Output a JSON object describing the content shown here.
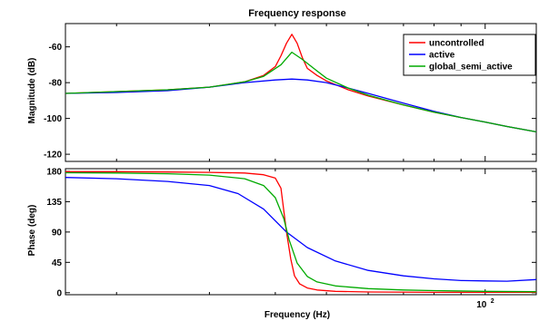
{
  "chart_data": [
    {
      "type": "line",
      "title": "Frequency response",
      "ylabel": "Magnitude (dB)",
      "xscale": "log",
      "xlim": [
        16,
        125
      ],
      "ylim": [
        -124,
        -47
      ],
      "yticks": [
        -60,
        -80,
        -100,
        -120
      ],
      "grid": false,
      "legend_position": "top-right",
      "series": [
        {
          "name": "uncontrolled",
          "color": "#ff0000",
          "points": [
            [
              16,
              -86
            ],
            [
              20,
              -85
            ],
            [
              25,
              -84
            ],
            [
              30,
              -82.5
            ],
            [
              35,
              -79.5
            ],
            [
              38,
              -76
            ],
            [
              40,
              -71
            ],
            [
              41,
              -65
            ],
            [
              42,
              -58
            ],
            [
              43,
              -53
            ],
            [
              44,
              -58
            ],
            [
              45,
              -66
            ],
            [
              46,
              -72
            ],
            [
              48,
              -76
            ],
            [
              50,
              -79
            ],
            [
              55,
              -84
            ],
            [
              60,
              -87.5
            ],
            [
              70,
              -92.5
            ],
            [
              80,
              -96.5
            ],
            [
              90,
              -99.5
            ],
            [
              100,
              -102
            ],
            [
              110,
              -104.5
            ],
            [
              125,
              -107.5
            ]
          ]
        },
        {
          "name": "active",
          "color": "#0000ff",
          "points": [
            [
              16,
              -86
            ],
            [
              20,
              -85.5
            ],
            [
              25,
              -84.5
            ],
            [
              30,
              -82.5
            ],
            [
              35,
              -80
            ],
            [
              40,
              -78.5
            ],
            [
              43,
              -78
            ],
            [
              46,
              -78.5
            ],
            [
              50,
              -80
            ],
            [
              55,
              -83
            ],
            [
              60,
              -86
            ],
            [
              70,
              -91.5
            ],
            [
              80,
              -96
            ],
            [
              90,
              -99.5
            ],
            [
              100,
              -102
            ],
            [
              110,
              -104.5
            ],
            [
              125,
              -107.5
            ]
          ]
        },
        {
          "name": "global_semi_active",
          "color": "#00aa00",
          "points": [
            [
              16,
              -86
            ],
            [
              20,
              -85
            ],
            [
              25,
              -84
            ],
            [
              30,
              -82.5
            ],
            [
              35,
              -79.5
            ],
            [
              38,
              -76.5
            ],
            [
              41,
              -70
            ],
            [
              43,
              -63
            ],
            [
              45,
              -67
            ],
            [
              48,
              -73.5
            ],
            [
              50,
              -77.5
            ],
            [
              55,
              -83
            ],
            [
              60,
              -87
            ],
            [
              70,
              -92.5
            ],
            [
              80,
              -96.5
            ],
            [
              90,
              -99.5
            ],
            [
              100,
              -102
            ],
            [
              110,
              -104.5
            ],
            [
              125,
              -107.5
            ]
          ]
        }
      ]
    },
    {
      "type": "line",
      "xlabel": "Frequency  (Hz)",
      "ylabel": "Phase (deg)",
      "xscale": "log",
      "xlim": [
        16,
        125
      ],
      "ylim": [
        -3,
        184
      ],
      "yticks": [
        0,
        45,
        90,
        135,
        180
      ],
      "xtick_labels": [
        "10^2"
      ],
      "grid": false,
      "series": [
        {
          "name": "uncontrolled",
          "color": "#ff0000",
          "points": [
            [
              16,
              179.5
            ],
            [
              20,
              179.5
            ],
            [
              25,
              179
            ],
            [
              30,
              178.5
            ],
            [
              35,
              177.5
            ],
            [
              38,
              175
            ],
            [
              40,
              170
            ],
            [
              41,
              155
            ],
            [
              42,
              90
            ],
            [
              42.8,
              50
            ],
            [
              43.5,
              25
            ],
            [
              44.5,
              13
            ],
            [
              46,
              7
            ],
            [
              48,
              4
            ],
            [
              52,
              2
            ],
            [
              60,
              1
            ],
            [
              80,
              0.5
            ],
            [
              100,
              0.5
            ],
            [
              125,
              0.5
            ]
          ]
        },
        {
          "name": "active",
          "color": "#0000ff",
          "points": [
            [
              16,
              171
            ],
            [
              20,
              169
            ],
            [
              25,
              165
            ],
            [
              30,
              159
            ],
            [
              34,
              147
            ],
            [
              38,
              124
            ],
            [
              42,
              90
            ],
            [
              46,
              67
            ],
            [
              52,
              47
            ],
            [
              60,
              33
            ],
            [
              70,
              25
            ],
            [
              80,
              20.5
            ],
            [
              90,
              18
            ],
            [
              100,
              17.5
            ],
            [
              110,
              17
            ],
            [
              125,
              19.5
            ]
          ]
        },
        {
          "name": "global_semi_active",
          "color": "#00aa00",
          "points": [
            [
              16,
              178
            ],
            [
              20,
              177.5
            ],
            [
              25,
              176.5
            ],
            [
              30,
              174.5
            ],
            [
              35,
              169
            ],
            [
              38,
              159
            ],
            [
              40,
              141
            ],
            [
              41.5,
              110
            ],
            [
              42.5,
              78
            ],
            [
              44,
              44
            ],
            [
              46,
              24
            ],
            [
              48,
              16
            ],
            [
              52,
              10
            ],
            [
              60,
              6
            ],
            [
              70,
              4
            ],
            [
              80,
              3
            ],
            [
              100,
              2
            ],
            [
              125,
              1.5
            ]
          ]
        }
      ]
    }
  ]
}
